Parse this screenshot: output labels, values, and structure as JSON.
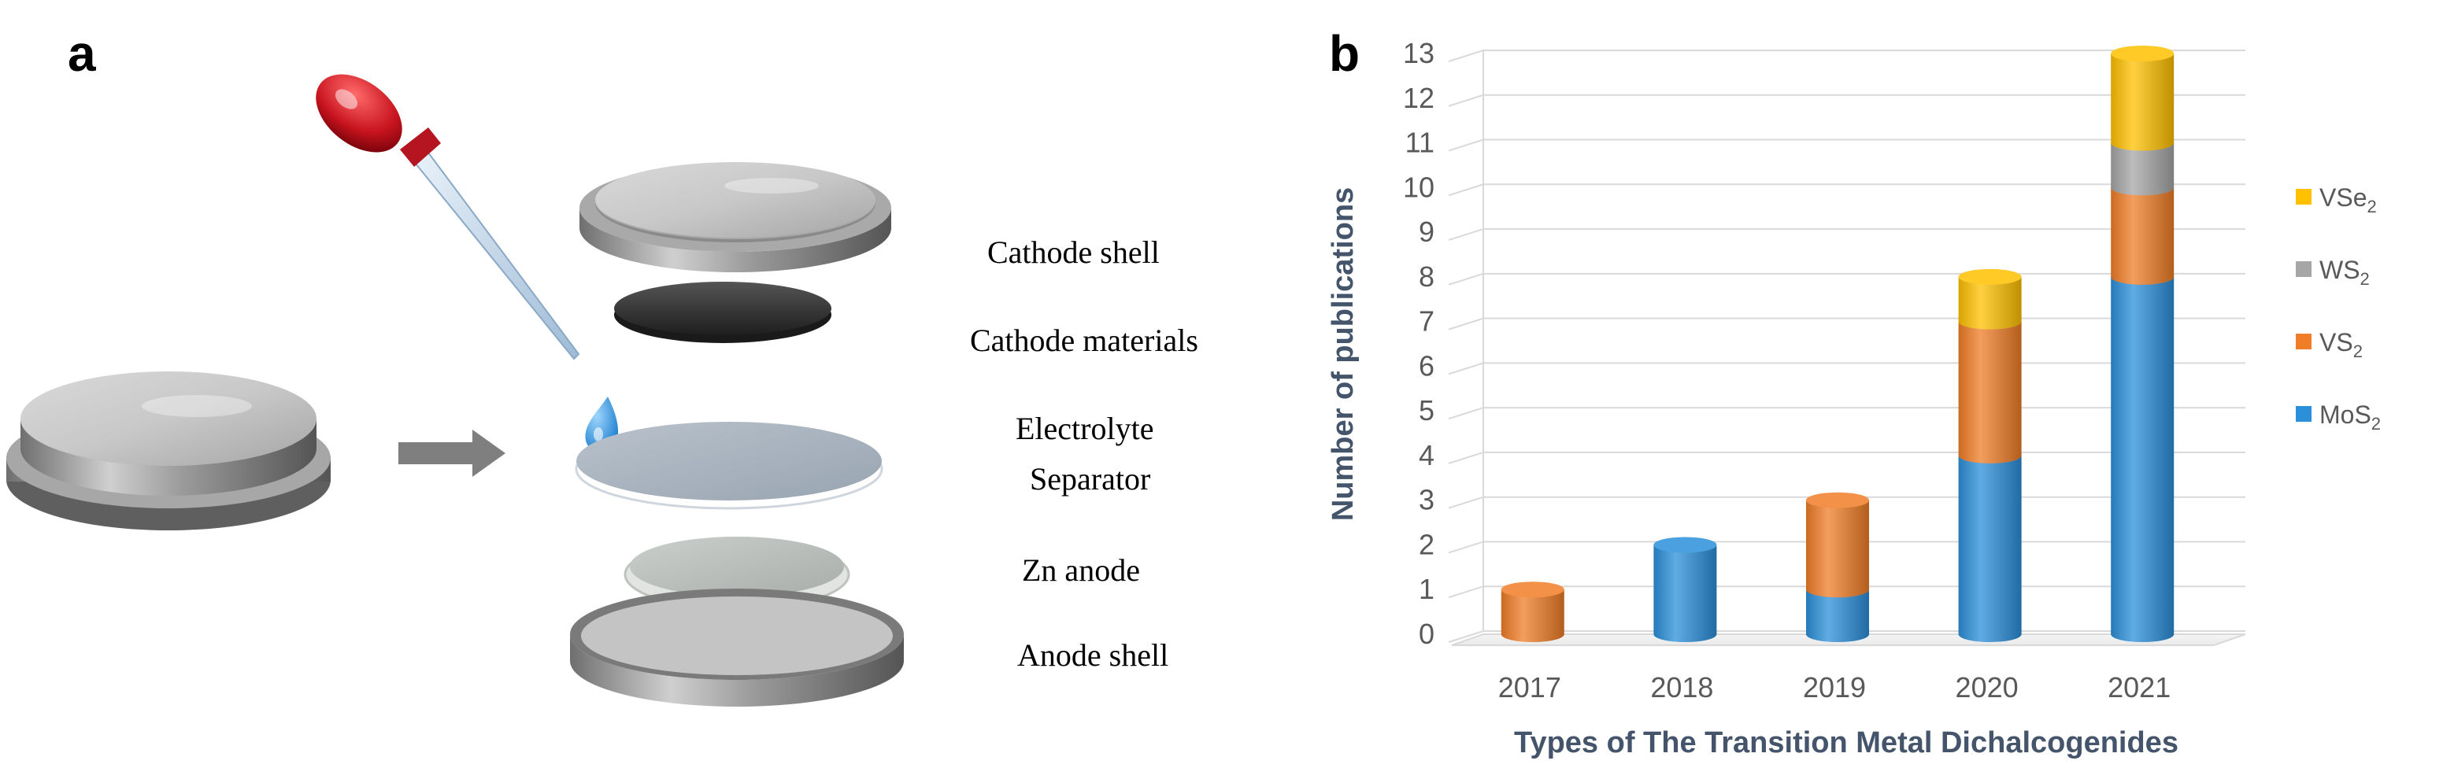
{
  "panels": {
    "a": {
      "label": "a"
    },
    "b": {
      "label": "b"
    }
  },
  "assembly": {
    "labels": [
      "Cathode shell",
      "Cathode materials",
      "Electrolyte",
      "Separator",
      "Zn anode",
      "Anode shell"
    ]
  },
  "chart_data": {
    "type": "bar",
    "stacked": true,
    "style": "3d-cylinder",
    "categories": [
      "2017",
      "2018",
      "2019",
      "2020",
      "2021"
    ],
    "series": [
      {
        "name": "MoS2",
        "label_base": "MoS",
        "label_sub": "2",
        "color": "#2b8fd9",
        "values": [
          0,
          2,
          1,
          4,
          8
        ]
      },
      {
        "name": "VS2",
        "label_base": "VS",
        "label_sub": "2",
        "color": "#f07d27",
        "values": [
          1,
          0,
          2,
          3,
          2
        ]
      },
      {
        "name": "WS2",
        "label_base": "WS",
        "label_sub": "2",
        "color": "#a6a6a6",
        "values": [
          0,
          0,
          0,
          0,
          1
        ]
      },
      {
        "name": "VSe2",
        "label_base": "VSe",
        "label_sub": "2",
        "color": "#ffc000",
        "values": [
          0,
          0,
          0,
          1,
          2
        ]
      }
    ],
    "ylim": [
      0,
      13
    ],
    "yticks": [
      "0",
      "1",
      "2",
      "3",
      "4",
      "5",
      "6",
      "7",
      "8",
      "9",
      "10",
      "11",
      "12",
      "13"
    ],
    "xlabel": "Types of The Transition Metal Dichalcogenides",
    "ylabel": "Number of publications",
    "legend_position": "right",
    "grid": true
  }
}
